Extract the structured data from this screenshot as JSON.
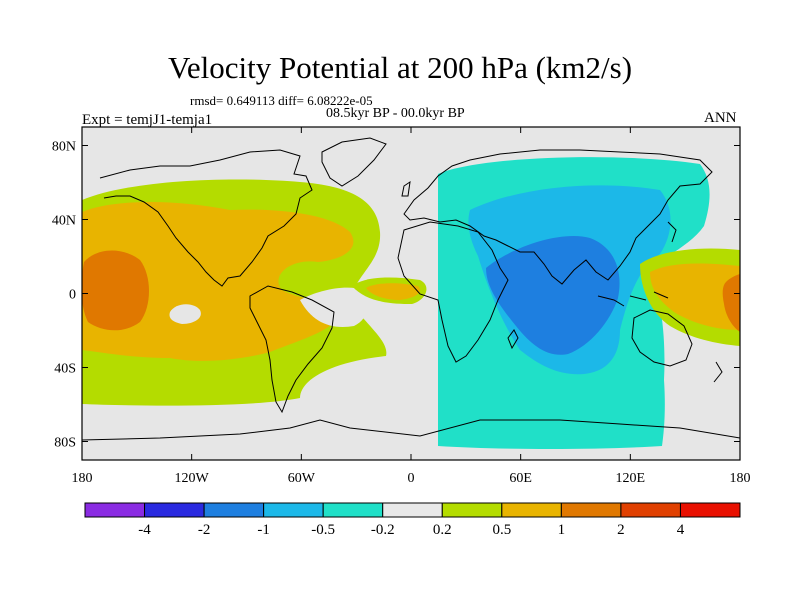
{
  "title": "Velocity Potential at 200 hPa (km2/s)",
  "stats": "rmsd= 0.649113 diff= 6.08222e-05",
  "experiment": "Expt = temjJ1-temja1",
  "period": "08.5kyr BP - 00.0kyr BP",
  "season": "ANN",
  "map": {
    "projection": "cylindrical equidistant",
    "lon_range": [
      -180,
      180
    ],
    "lat_range": [
      -90,
      90
    ],
    "lon_ticks": [
      {
        "lon": -180,
        "label": "180"
      },
      {
        "lon": -120,
        "label": "120W"
      },
      {
        "lon": -60,
        "label": "60W"
      },
      {
        "lon": 0,
        "label": "0"
      },
      {
        "lon": 60,
        "label": "60E"
      },
      {
        "lon": 120,
        "label": "120E"
      },
      {
        "lon": 180,
        "label": "180"
      }
    ],
    "lat_ticks": [
      {
        "lat": 80,
        "label": "80N"
      },
      {
        "lat": 40,
        "label": "40N"
      },
      {
        "lat": 0,
        "label": "0"
      },
      {
        "lat": -40,
        "label": "40S"
      },
      {
        "lat": -80,
        "label": "80S"
      }
    ]
  },
  "colorbar": {
    "colors": [
      "#8a2be2",
      "#2a2ae0",
      "#1e7fe0",
      "#1cb8e8",
      "#20e0c8",
      "#e8e8e8",
      "#b4dc00",
      "#e8b400",
      "#e07800",
      "#e04000",
      "#e81000"
    ],
    "labels": [
      "-4",
      "-2",
      "-1",
      "-0.5",
      "-0.2",
      "0.2",
      "0.5",
      "1",
      "2",
      "4"
    ]
  },
  "colors": {
    "background": "#e6e6e6",
    "coastline": "#000000"
  }
}
